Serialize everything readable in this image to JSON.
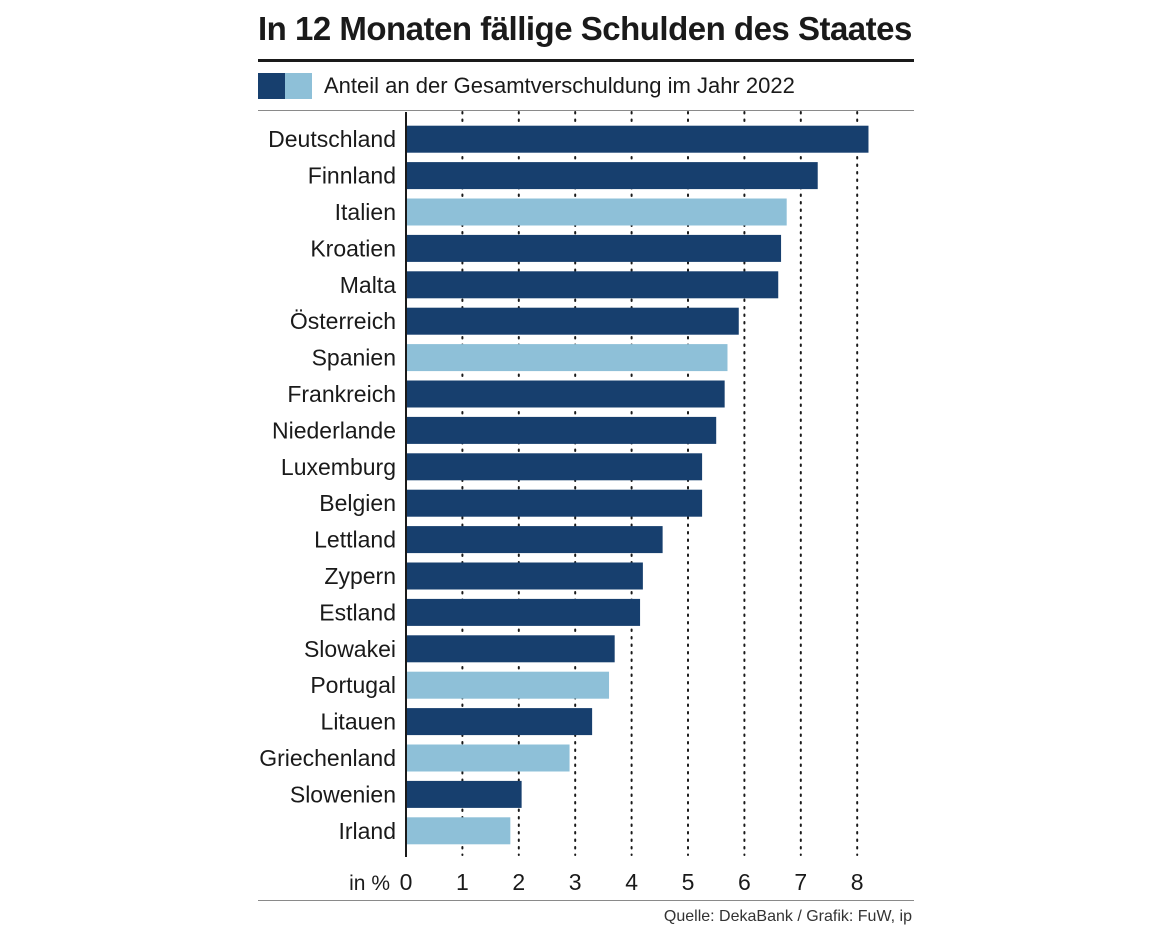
{
  "chart_data": {
    "type": "bar",
    "orientation": "horizontal",
    "title": "In 12 Monaten fällige Schulden des Staates",
    "legend_label": "Anteil an der Gesamtverschuldung im Jahr 2022",
    "unit_label": "in %",
    "source": "Quelle: DekaBank / Grafik: FuW, ip",
    "xlim": [
      0,
      8.5
    ],
    "ticks": [
      0,
      1,
      2,
      3,
      4,
      5,
      6,
      7,
      8
    ],
    "grid": "vertical dotted",
    "colors": {
      "dark": "#173f6e",
      "light": "#8ec0d8"
    },
    "categories": [
      "Deutschland",
      "Finnland",
      "Italien",
      "Kroatien",
      "Malta",
      "Österreich",
      "Spanien",
      "Frankreich",
      "Niederlande",
      "Luxemburg",
      "Belgien",
      "Lettland",
      "Zypern",
      "Estland",
      "Slowakei",
      "Portugal",
      "Litauen",
      "Griechenland",
      "Slowenien",
      "Irland"
    ],
    "values": [
      8.2,
      7.3,
      6.75,
      6.65,
      6.6,
      5.9,
      5.7,
      5.65,
      5.5,
      5.25,
      5.25,
      4.55,
      4.2,
      4.15,
      3.7,
      3.6,
      3.3,
      2.9,
      2.05,
      1.85
    ],
    "highlight": [
      false,
      false,
      true,
      false,
      false,
      false,
      true,
      false,
      false,
      false,
      false,
      false,
      false,
      false,
      false,
      true,
      false,
      true,
      false,
      true
    ]
  }
}
